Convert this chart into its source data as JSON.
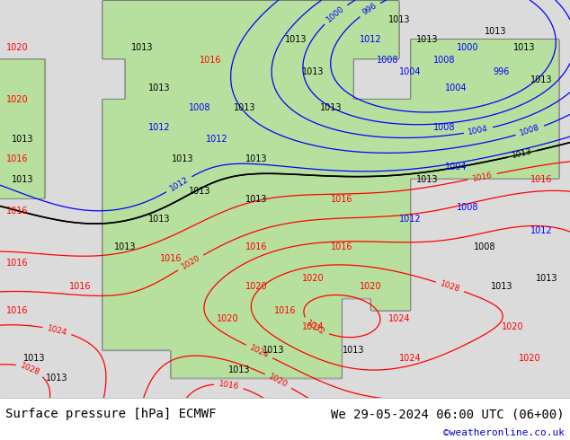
{
  "title_left": "Surface pressure [hPa] ECMWF",
  "title_right": "We 29-05-2024 06:00 UTC (06+00)",
  "copyright": "©weatheronline.co.uk",
  "bg_color": "#ffffff",
  "ocean_color": "#d8d8d8",
  "land_color": "#b8e0a0",
  "land_color2": "#c8eab0",
  "bottom_bar_color": "#ffffff",
  "text_color": "#000000",
  "copyright_color": "#0000cc",
  "font_size_title": 10,
  "font_size_copyright": 8,
  "fig_width": 6.34,
  "fig_height": 4.9,
  "dpi": 100
}
